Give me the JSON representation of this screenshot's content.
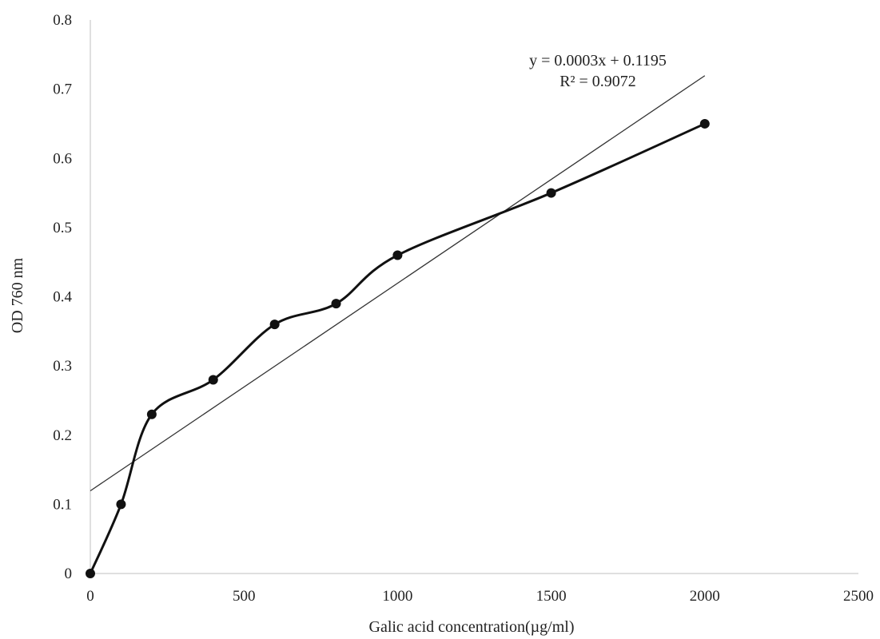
{
  "chart_data": {
    "type": "line",
    "title": "",
    "xlabel": "Galic  acid concentration(µg/ml)",
    "ylabel": "OD 760 nm",
    "xlim": [
      0,
      2500
    ],
    "ylim": [
      0,
      0.8
    ],
    "x_ticks": [
      0,
      500,
      1000,
      1500,
      2000,
      2500
    ],
    "y_ticks": [
      0,
      0.1,
      0.2,
      0.3,
      0.4,
      0.5,
      0.6,
      0.7,
      0.8
    ],
    "x_tick_labels": [
      "0",
      "500",
      "1000",
      "1500",
      "2000",
      "2500"
    ],
    "y_tick_labels": [
      "0",
      "0.1",
      "0.2",
      "0.3",
      "0.4",
      "0.5",
      "0.6",
      "0.7",
      "0.8"
    ],
    "grid": false,
    "series": [
      {
        "x": [
          0,
          100,
          200,
          400,
          600,
          800,
          1000,
          1500,
          2000
        ],
        "y": [
          0,
          0.1,
          0.23,
          0.28,
          0.36,
          0.39,
          0.46,
          0.55,
          0.65
        ],
        "style": "smoothed line with markers",
        "color": "#111111"
      }
    ],
    "trendline": {
      "type": "linear",
      "slope": 0.0003,
      "intercept": 0.1195,
      "x_range": [
        0,
        2000
      ],
      "color": "#333333"
    },
    "annotations": {
      "equation": "y = 0.0003x + 0.1195",
      "r_squared": "R² = 0.9072"
    }
  }
}
